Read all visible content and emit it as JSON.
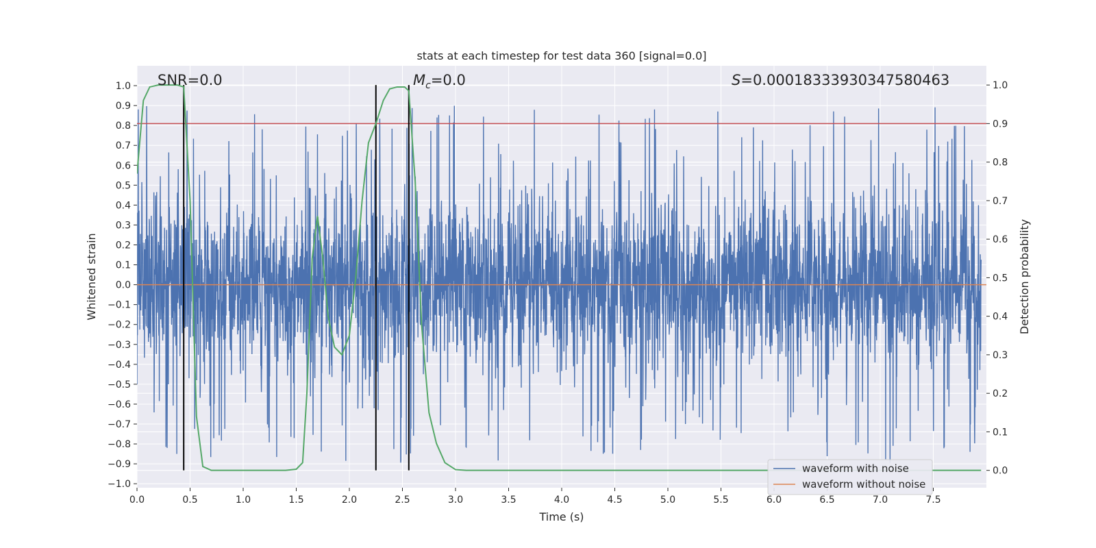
{
  "chart_data": {
    "type": "line",
    "title": "stats at each timestep for test data 360 [signal=0.0]",
    "xlabel": "Time (s)",
    "ylabel": "Whitened strain",
    "y2label": "Detection probability",
    "xlim": [
      0.0,
      8.0
    ],
    "ylim": [
      -1.02,
      1.1
    ],
    "y2lim": [
      -0.045,
      1.05
    ],
    "x_ticks": [
      "0.0",
      "0.5",
      "1.0",
      "1.5",
      "2.0",
      "2.5",
      "3.0",
      "3.5",
      "4.0",
      "4.5",
      "5.0",
      "5.5",
      "6.0",
      "6.5",
      "7.0",
      "7.5"
    ],
    "y_ticks": [
      "-1.0",
      "-0.9",
      "-0.8",
      "-0.7",
      "-0.6",
      "-0.5",
      "-0.4",
      "-0.3",
      "-0.2",
      "-0.1",
      "0.0",
      "0.1",
      "0.2",
      "0.3",
      "0.4",
      "0.5",
      "0.6",
      "0.7",
      "0.8",
      "0.9",
      "1.0"
    ],
    "y2_ticks": [
      "0.0",
      "0.1",
      "0.2",
      "0.3",
      "0.4",
      "0.5",
      "0.6",
      "0.7",
      "0.8",
      "0.9",
      "1.0"
    ],
    "grid": true,
    "legend_position": "lower right",
    "annotations": {
      "snr": "SNR=0.0",
      "mc": "=0.0",
      "s": "=0.00018333930347580463"
    },
    "threshold_probability": 0.9,
    "vertical_lines_s": [
      0.44,
      2.25,
      2.56
    ],
    "series": [
      {
        "name": "waveform with noise",
        "color": "#4c72b0",
        "axis": "left",
        "description": "whitened noisy strain, roughly uniform amplitude about ±0.45, spikes to ±1.0"
      },
      {
        "name": "waveform without noise",
        "color": "#dd8452",
        "axis": "left",
        "constant": 0.0
      },
      {
        "name": "",
        "color": "#55a868",
        "axis": "right",
        "x": [
          0.0,
          0.06,
          0.12,
          0.2,
          0.3,
          0.38,
          0.44,
          0.5,
          0.56,
          0.62,
          0.7,
          0.8,
          1.0,
          1.2,
          1.4,
          1.5,
          1.56,
          1.6,
          1.65,
          1.7,
          1.75,
          1.8,
          1.86,
          1.93,
          2.0,
          2.06,
          2.12,
          2.18,
          2.25,
          2.32,
          2.38,
          2.45,
          2.52,
          2.56,
          2.62,
          2.68,
          2.75,
          2.82,
          2.9,
          3.0,
          3.1,
          3.3,
          4.0,
          5.0,
          6.0,
          7.0,
          7.95
        ],
        "values": [
          0.77,
          0.96,
          0.995,
          1.0,
          1.0,
          1.0,
          0.995,
          0.7,
          0.14,
          0.01,
          0.0,
          0.0,
          0.0,
          0.0,
          0.0,
          0.003,
          0.02,
          0.2,
          0.55,
          0.66,
          0.55,
          0.4,
          0.32,
          0.3,
          0.35,
          0.5,
          0.7,
          0.85,
          0.9,
          0.96,
          0.99,
          0.995,
          0.995,
          0.985,
          0.75,
          0.38,
          0.15,
          0.07,
          0.02,
          0.002,
          0.0,
          0.0,
          0.0,
          0.0,
          0.0,
          0.0,
          0.0
        ]
      }
    ]
  }
}
